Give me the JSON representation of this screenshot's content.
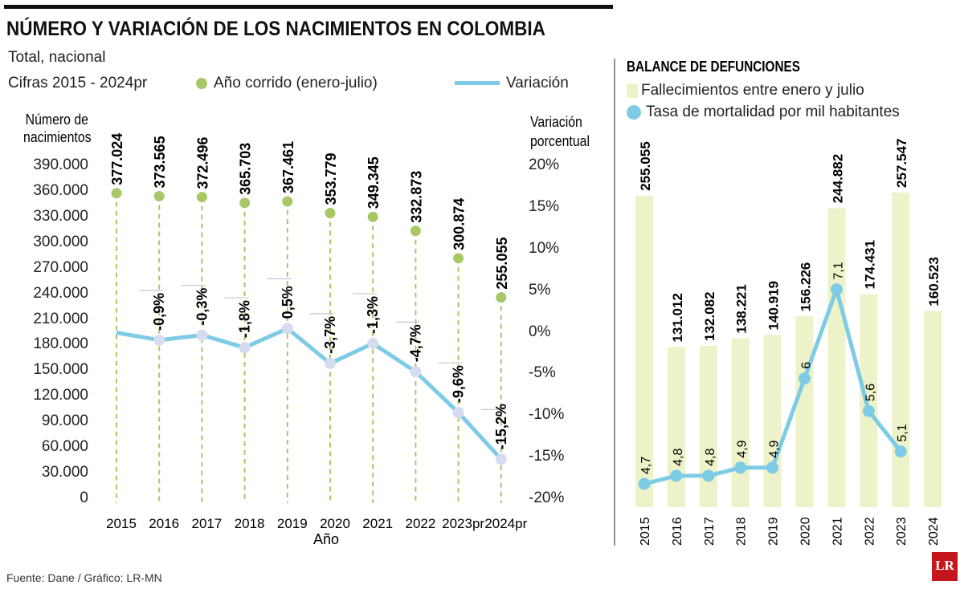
{
  "left": {
    "title": "NÚMERO Y VARIACIÓN DE LOS NACIMIENTOS EN COLOMBIA",
    "subtitle1": "Total, nacional",
    "subtitle2": "Cifras 2015 - 2024pr",
    "legend_births": "Año corrido (enero-julio)",
    "legend_variation": "Variación",
    "y_left_label1": "Número de",
    "y_left_label2": "nacimientos",
    "y_right_label1": "Variación",
    "y_right_label2": "porcentual",
    "x_label": "Año",
    "source": "Fuente: Dane / Gráfico: LR-MN"
  },
  "right": {
    "title": "BALANCE DE DEFUNCIONES",
    "legend_bars": "Fallecimientos entre enero y julio",
    "legend_line": "Tasa de mortalidad por mil habitantes"
  },
  "logo": "LR",
  "colors": {
    "green": "#a8c865",
    "blue": "#7ecbe6",
    "bar": "#eef2c8",
    "point": "#d5dcef"
  },
  "chart_data": [
    {
      "type": "line",
      "categories": [
        "2015",
        "2016",
        "2017",
        "2018",
        "2019",
        "2020",
        "2021",
        "2022",
        "2023pr",
        "2024pr"
      ],
      "y_left_ticks": [
        "390.000",
        "360.000",
        "330.000",
        "300.000",
        "270.000",
        "240.000",
        "210.000",
        "180.000",
        "150.000",
        "120.000",
        "90.000",
        "60.000",
        "30.000",
        "0"
      ],
      "y_right_ticks": [
        "20%",
        "15%",
        "10%",
        "5%",
        "0%",
        "-5%",
        "-10%",
        "-15%",
        "-20%"
      ],
      "ylim_left": [
        0,
        390000
      ],
      "ylim_right": [
        -20,
        20
      ],
      "series": [
        {
          "name": "Año corrido (enero-julio)",
          "axis": "left",
          "values": [
            377024,
            373565,
            372496,
            365703,
            367461,
            353779,
            349345,
            332873,
            300874,
            255055
          ],
          "labels": [
            "377.024",
            "373.565",
            "372.496",
            "365.703",
            "367.461",
            "353.779",
            "349.345",
            "332.873",
            "300.874",
            "255.055"
          ]
        },
        {
          "name": "Variación",
          "axis": "right",
          "values": [
            null,
            -0.9,
            -0.3,
            -1.8,
            0.5,
            -3.7,
            -1.3,
            -4.7,
            -9.6,
            -15.2
          ],
          "labels": [
            "",
            "-0,9%",
            "-0,3%",
            "-1,8%",
            "0,5%",
            "-3,7%",
            "-1,3%",
            "-4,7%",
            "-9,6%",
            "-15,2%"
          ]
        }
      ]
    },
    {
      "type": "bar",
      "categories": [
        "2015",
        "2016",
        "2017",
        "2018",
        "2019",
        "2020",
        "2021",
        "2022",
        "2023",
        "2024"
      ],
      "series": [
        {
          "name": "Fallecimientos entre enero y julio",
          "values": [
            255055,
            131012,
            132082,
            138221,
            140919,
            156226,
            244882,
            174431,
            257547,
            160523
          ],
          "labels": [
            "255.055",
            "131.012",
            "132.082",
            "138.221",
            "140.919",
            "156.226",
            "244.882",
            "174.431",
            "257.547",
            "160.523"
          ]
        },
        {
          "name": "Tasa de mortalidad por mil habitantes",
          "type": "line",
          "values": [
            4.7,
            4.8,
            4.8,
            4.9,
            4.9,
            6,
            7.1,
            5.6,
            5.1,
            null
          ],
          "labels": [
            "4,7",
            "4,8",
            "4,8",
            "4,9",
            "4,9",
            "6",
            "7,1",
            "5,6",
            "5,1",
            ""
          ]
        }
      ]
    }
  ]
}
